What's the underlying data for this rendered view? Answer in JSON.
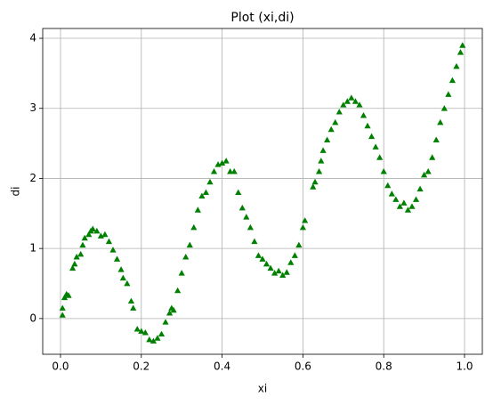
{
  "chart_data": {
    "type": "scatter",
    "title": "Plot (xi,di)",
    "x_label": "xi",
    "y_label": "di",
    "color": "#008000",
    "marker": "triangle",
    "grid": true,
    "xlim": [
      -0.044,
      1.044
    ],
    "ylim": [
      -0.51,
      4.14
    ],
    "xticks": [
      {
        "value": 0,
        "label": "0.0"
      },
      {
        "value": 0.2,
        "label": "0.2"
      },
      {
        "value": 0.4,
        "label": "0.4"
      },
      {
        "value": 0.6,
        "label": "0.6"
      },
      {
        "value": 0.8,
        "label": "0.8"
      },
      {
        "value": 1,
        "label": "1.0"
      }
    ],
    "yticks": [
      0,
      1,
      2,
      3,
      4
    ],
    "x": [
      0.005,
      0.005,
      0.01,
      0.015,
      0.02,
      0.03,
      0.035,
      0.04,
      0.05,
      0.055,
      0.06,
      0.07,
      0.075,
      0.08,
      0.09,
      0.1,
      0.11,
      0.12,
      0.13,
      0.14,
      0.15,
      0.155,
      0.165,
      0.175,
      0.18,
      0.19,
      0.2,
      0.21,
      0.22,
      0.23,
      0.24,
      0.25,
      0.26,
      0.27,
      0.275,
      0.28,
      0.29,
      0.3,
      0.31,
      0.32,
      0.33,
      0.34,
      0.35,
      0.36,
      0.37,
      0.38,
      0.39,
      0.4,
      0.41,
      0.42,
      0.43,
      0.44,
      0.45,
      0.46,
      0.47,
      0.48,
      0.49,
      0.5,
      0.51,
      0.52,
      0.53,
      0.54,
      0.55,
      0.56,
      0.57,
      0.58,
      0.59,
      0.6,
      0.605,
      0.625,
      0.63,
      0.64,
      0.645,
      0.65,
      0.66,
      0.67,
      0.68,
      0.69,
      0.7,
      0.71,
      0.72,
      0.73,
      0.74,
      0.75,
      0.76,
      0.77,
      0.78,
      0.79,
      0.8,
      0.81,
      0.82,
      0.83,
      0.84,
      0.85,
      0.86,
      0.87,
      0.88,
      0.89,
      0.9,
      0.91,
      0.92,
      0.93,
      0.94,
      0.95,
      0.96,
      0.97,
      0.98,
      0.99,
      0.995
    ],
    "y": [
      0.05,
      0.15,
      0.3,
      0.35,
      0.33,
      0.72,
      0.78,
      0.88,
      0.92,
      1.05,
      1.15,
      1.2,
      1.25,
      1.28,
      1.25,
      1.18,
      1.2,
      1.1,
      0.98,
      0.85,
      0.7,
      0.58,
      0.5,
      0.25,
      0.15,
      -0.15,
      -0.18,
      -0.2,
      -0.3,
      -0.32,
      -0.28,
      -0.22,
      -0.05,
      0.08,
      0.15,
      0.12,
      0.4,
      0.65,
      0.88,
      1.05,
      1.3,
      1.55,
      1.75,
      1.8,
      1.95,
      2.1,
      2.2,
      2.22,
      2.25,
      2.1,
      2.1,
      1.8,
      1.58,
      1.45,
      1.3,
      1.1,
      0.9,
      0.85,
      0.78,
      0.72,
      0.65,
      0.68,
      0.62,
      0.66,
      0.8,
      0.9,
      1.05,
      1.3,
      1.4,
      1.88,
      1.95,
      2.1,
      2.25,
      2.4,
      2.55,
      2.7,
      2.8,
      2.95,
      3.05,
      3.1,
      3.15,
      3.1,
      3.05,
      2.9,
      2.75,
      2.6,
      2.45,
      2.3,
      2.1,
      1.9,
      1.78,
      1.7,
      1.6,
      1.65,
      1.55,
      1.6,
      1.7,
      1.85,
      2.05,
      2.1,
      2.3,
      2.55,
      2.8,
      3.0,
      3.2,
      3.4,
      3.6,
      3.8,
      3.9
    ]
  }
}
